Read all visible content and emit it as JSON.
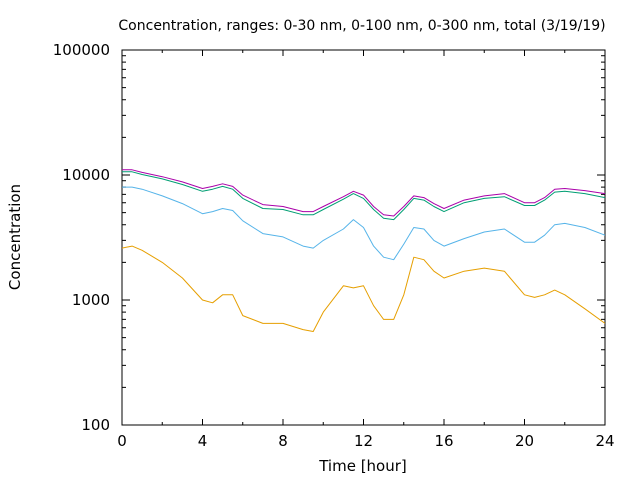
{
  "chart_data": {
    "type": "line",
    "title": "Concentration, ranges: 0-30 nm, 0-100 nm, 0-300 nm, total (3/19/19)",
    "xlabel": "Time [hour]",
    "ylabel": "Concentration",
    "xlim": [
      0,
      24
    ],
    "ylim": [
      100,
      100000
    ],
    "yscale": "log",
    "grid": false,
    "legend": "none",
    "x_ticks": [
      "0",
      "4",
      "8",
      "12",
      "16",
      "20",
      "24"
    ],
    "y_ticks": [
      "100",
      "1000",
      "10000",
      "100000"
    ],
    "x": [
      0,
      0.5,
      1,
      2,
      3,
      4,
      4.5,
      5,
      5.5,
      6,
      7,
      8,
      9,
      9.5,
      10,
      11,
      11.5,
      12,
      12.5,
      13,
      13.5,
      14,
      14.5,
      15,
      15.5,
      16,
      17,
      18,
      19,
      20,
      20.5,
      21,
      21.5,
      22,
      23,
      24
    ],
    "series": [
      {
        "color": "#aa00aa",
        "values": [
          11000,
          11000,
          10500,
          9700,
          8800,
          7800,
          8100,
          8500,
          8100,
          6900,
          5800,
          5600,
          5100,
          5100,
          5600,
          6700,
          7400,
          6900,
          5600,
          4800,
          4700,
          5600,
          6800,
          6600,
          5900,
          5400,
          6300,
          6800,
          7100,
          6000,
          6000,
          6600,
          7700,
          7800,
          7500,
          7100
        ]
      },
      {
        "color": "#009e73",
        "values": [
          10600,
          10600,
          10100,
          9300,
          8400,
          7400,
          7700,
          8100,
          7700,
          6500,
          5400,
          5300,
          4800,
          4800,
          5300,
          6400,
          7100,
          6500,
          5300,
          4500,
          4400,
          5300,
          6500,
          6300,
          5600,
          5100,
          6000,
          6500,
          6700,
          5700,
          5700,
          6300,
          7300,
          7400,
          7100,
          6600
        ]
      },
      {
        "color": "#56b4e9",
        "values": [
          8000,
          8000,
          7700,
          6800,
          5900,
          4900,
          5100,
          5400,
          5200,
          4300,
          3400,
          3200,
          2700,
          2600,
          3000,
          3700,
          4400,
          3800,
          2700,
          2200,
          2100,
          2800,
          3800,
          3700,
          3000,
          2700,
          3100,
          3500,
          3700,
          2900,
          2900,
          3300,
          4000,
          4100,
          3800,
          3300
        ]
      },
      {
        "color": "#e69f00",
        "values": [
          2600,
          2700,
          2500,
          2000,
          1500,
          1000,
          950,
          1100,
          1100,
          750,
          650,
          650,
          580,
          560,
          800,
          1300,
          1250,
          1300,
          900,
          700,
          700,
          1100,
          2200,
          2100,
          1700,
          1500,
          1700,
          1800,
          1700,
          1100,
          1050,
          1100,
          1200,
          1100,
          850,
          650
        ]
      }
    ]
  }
}
